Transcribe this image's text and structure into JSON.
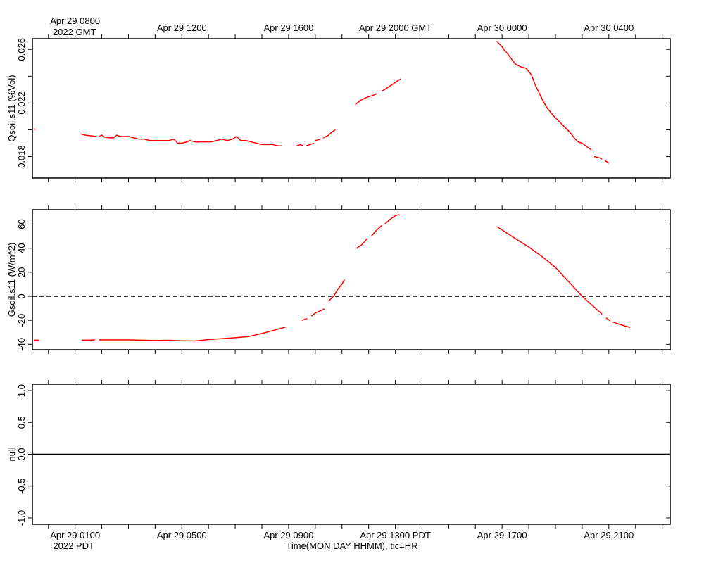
{
  "chart_data": {
    "type": "line",
    "time_axis": {
      "x_start_hours_since_apr29_0000_pdt": -0.6,
      "x_end_hours_since_apr29_0000_pdt": 23.3,
      "top_labels": [
        {
          "x": 1,
          "line1": "Apr 29 0800",
          "line2": "2022 GMT"
        },
        {
          "x": 5,
          "line1": "Apr 29 1200",
          "line2": ""
        },
        {
          "x": 9,
          "line1": "Apr 29 1600",
          "line2": ""
        },
        {
          "x": 13,
          "line1": "Apr 29 2000 GMT",
          "line2": ""
        },
        {
          "x": 17,
          "line1": "Apr 30 0000",
          "line2": ""
        },
        {
          "x": 21,
          "line1": "Apr 30 0400",
          "line2": ""
        }
      ],
      "bottom_labels": [
        {
          "x": 1,
          "line1": "Apr 29 0100",
          "line2": "2022 PDT"
        },
        {
          "x": 5,
          "line1": "Apr 29 0500",
          "line2": ""
        },
        {
          "x": 9,
          "line1": "Apr 29 0900",
          "line2": ""
        },
        {
          "x": 13,
          "line1": "Apr 29 1300 PDT",
          "line2": ""
        },
        {
          "x": 17,
          "line1": "Apr 29 1700",
          "line2": ""
        },
        {
          "x": 21,
          "line1": "Apr 29 2100",
          "line2": ""
        }
      ],
      "xlabel": "Time(MON DAY HHMM), tic=HR"
    },
    "panels": [
      {
        "ylabel": "Qsoil.s11 (%Vol)",
        "ylim": [
          0.0164,
          0.0268
        ],
        "yticks": [
          0.018,
          0.02,
          0.022,
          0.024,
          0.026
        ],
        "ytick_labels": [
          "0.018",
          "",
          "0.022",
          "",
          "0.026"
        ],
        "zero_line": "none",
        "segments": [
          [
            [
              -0.55,
              0.0201
            ],
            [
              -0.5,
              0.02
            ]
          ],
          [
            [
              1.2,
              0.0197
            ],
            [
              1.4,
              0.0196
            ],
            [
              1.6,
              0.01955
            ],
            [
              1.8,
              0.0195
            ]
          ],
          [
            [
              1.9,
              0.0195
            ],
            [
              2.0,
              0.0196
            ],
            [
              2.1,
              0.01945
            ],
            [
              2.3,
              0.0194
            ],
            [
              2.45,
              0.0194
            ],
            [
              2.55,
              0.0196
            ],
            [
              2.7,
              0.0195
            ],
            [
              3.0,
              0.0195
            ],
            [
              3.2,
              0.0194
            ],
            [
              3.4,
              0.0193
            ],
            [
              3.6,
              0.0193
            ],
            [
              3.8,
              0.0192
            ],
            [
              4.0,
              0.0192
            ],
            [
              4.2,
              0.0192
            ],
            [
              4.5,
              0.0192
            ],
            [
              4.7,
              0.0193
            ],
            [
              4.85,
              0.019
            ],
            [
              5.0,
              0.019
            ],
            [
              5.2,
              0.0191
            ],
            [
              5.3,
              0.0192
            ],
            [
              5.5,
              0.0191
            ],
            [
              5.7,
              0.0191
            ],
            [
              5.9,
              0.0191
            ],
            [
              6.1,
              0.0191
            ],
            [
              6.3,
              0.0192
            ],
            [
              6.5,
              0.0193
            ],
            [
              6.7,
              0.0192
            ],
            [
              6.9,
              0.0193
            ],
            [
              7.05,
              0.0195
            ],
            [
              7.2,
              0.0192
            ],
            [
              7.4,
              0.0192
            ],
            [
              7.6,
              0.0191
            ],
            [
              7.8,
              0.019
            ],
            [
              8.0,
              0.0189
            ],
            [
              8.2,
              0.0189
            ],
            [
              8.4,
              0.0189
            ],
            [
              8.6,
              0.0188
            ],
            [
              8.75,
              0.0188
            ]
          ],
          [
            [
              9.3,
              0.0188
            ],
            [
              9.45,
              0.0189
            ],
            [
              9.55,
              0.0188
            ]
          ],
          [
            [
              9.65,
              0.0188
            ],
            [
              9.8,
              0.0189
            ],
            [
              9.95,
              0.019
            ]
          ],
          [
            [
              10.0,
              0.0192
            ],
            [
              10.2,
              0.0193
            ]
          ],
          [
            [
              10.3,
              0.0194
            ],
            [
              10.5,
              0.0196
            ],
            [
              10.6,
              0.0198
            ],
            [
              10.75,
              0.02
            ]
          ],
          [
            [
              11.5,
              0.0219
            ],
            [
              11.7,
              0.0222
            ],
            [
              11.9,
              0.0224
            ],
            [
              12.05,
              0.0225
            ],
            [
              12.2,
              0.0226
            ],
            [
              12.3,
              0.0227
            ]
          ],
          [
            [
              12.5,
              0.0229
            ],
            [
              12.6,
              0.023
            ],
            [
              12.75,
              0.0232
            ],
            [
              12.9,
              0.0234
            ],
            [
              13.05,
              0.0236
            ],
            [
              13.2,
              0.0238
            ]
          ],
          [
            [
              16.8,
              0.0266
            ],
            [
              16.9,
              0.0264
            ],
            [
              17.0,
              0.0262
            ],
            [
              17.1,
              0.0259
            ],
            [
              17.2,
              0.0257
            ],
            [
              17.35,
              0.0253
            ],
            [
              17.5,
              0.0249
            ],
            [
              17.7,
              0.0247
            ],
            [
              17.9,
              0.0246
            ],
            [
              18.1,
              0.0241
            ],
            [
              18.25,
              0.0233
            ],
            [
              18.4,
              0.0227
            ],
            [
              18.55,
              0.0221
            ],
            [
              18.7,
              0.0216
            ],
            [
              18.9,
              0.0211
            ],
            [
              19.1,
              0.0207
            ],
            [
              19.3,
              0.0203
            ],
            [
              19.55,
              0.0198
            ],
            [
              19.7,
              0.0194
            ],
            [
              19.85,
              0.0191
            ],
            [
              20.0,
              0.019
            ],
            [
              20.2,
              0.0187
            ],
            [
              20.35,
              0.0185
            ]
          ],
          [
            [
              20.45,
              0.018
            ],
            [
              20.65,
              0.0179
            ],
            [
              20.75,
              0.0178
            ]
          ],
          [
            [
              20.85,
              0.0177
            ],
            [
              20.95,
              0.0176
            ],
            [
              21.0,
              0.0175
            ]
          ]
        ]
      },
      {
        "ylabel": "Gsoil.s11 (W/m^2)",
        "ylim": [
          -44.5,
          72
        ],
        "yticks": [
          -40,
          -20,
          0,
          20,
          40,
          60
        ],
        "ytick_labels": [
          "-40",
          "-20",
          "0",
          "20",
          "40",
          "60"
        ],
        "zero_line": "dashed",
        "segments": [
          [
            [
              -0.55,
              -36.5
            ],
            [
              -0.35,
              -36.5
            ]
          ],
          [
            [
              1.25,
              -36.5
            ],
            [
              1.6,
              -36.5
            ],
            [
              1.75,
              -36.3
            ]
          ],
          [
            [
              1.9,
              -36.3
            ],
            [
              3.0,
              -36.3
            ],
            [
              4.0,
              -36.8
            ],
            [
              4.5,
              -36.6
            ],
            [
              5.0,
              -37
            ],
            [
              5.5,
              -37.2
            ],
            [
              6.0,
              -36
            ],
            [
              7.0,
              -34.5
            ],
            [
              7.5,
              -33.5
            ],
            [
              8.0,
              -31
            ],
            [
              8.5,
              -28
            ],
            [
              8.9,
              -25.5
            ]
          ],
          [
            [
              9.5,
              -20
            ],
            [
              9.7,
              -18.5
            ]
          ],
          [
            [
              9.85,
              -16.5
            ],
            [
              10.0,
              -14
            ],
            [
              10.2,
              -12
            ],
            [
              10.35,
              -10.5
            ]
          ],
          [
            [
              10.5,
              -4
            ],
            [
              10.7,
              0.5
            ],
            [
              10.85,
              6
            ],
            [
              11.0,
              10
            ],
            [
              11.1,
              14
            ]
          ],
          [
            [
              11.55,
              40
            ],
            [
              11.75,
              43
            ],
            [
              11.95,
              48
            ]
          ],
          [
            [
              12.1,
              50
            ],
            [
              12.3,
              55
            ],
            [
              12.5,
              59
            ]
          ],
          [
            [
              12.6,
              60
            ],
            [
              12.8,
              64
            ],
            [
              13.0,
              67
            ],
            [
              13.15,
              68
            ]
          ],
          [
            [
              16.8,
              58
            ],
            [
              17.5,
              48
            ],
            [
              18.0,
              41
            ],
            [
              18.5,
              33
            ],
            [
              19.0,
              24
            ],
            [
              19.5,
              12
            ],
            [
              20.0,
              0
            ],
            [
              20.5,
              -10
            ],
            [
              20.75,
              -15
            ]
          ],
          [
            [
              20.9,
              -18
            ],
            [
              21.05,
              -20.5
            ]
          ],
          [
            [
              21.15,
              -21.5
            ],
            [
              21.5,
              -24
            ],
            [
              21.8,
              -26
            ]
          ]
        ]
      },
      {
        "ylabel": "null",
        "ylim": [
          -1.1,
          1.1
        ],
        "yticks": [
          -1,
          -0.5,
          0,
          0.5,
          1
        ],
        "ytick_labels": [
          "-1.0",
          "-0.5",
          "0.0",
          "0.5",
          "1.0"
        ],
        "zero_line": "solid",
        "segments": []
      }
    ]
  }
}
